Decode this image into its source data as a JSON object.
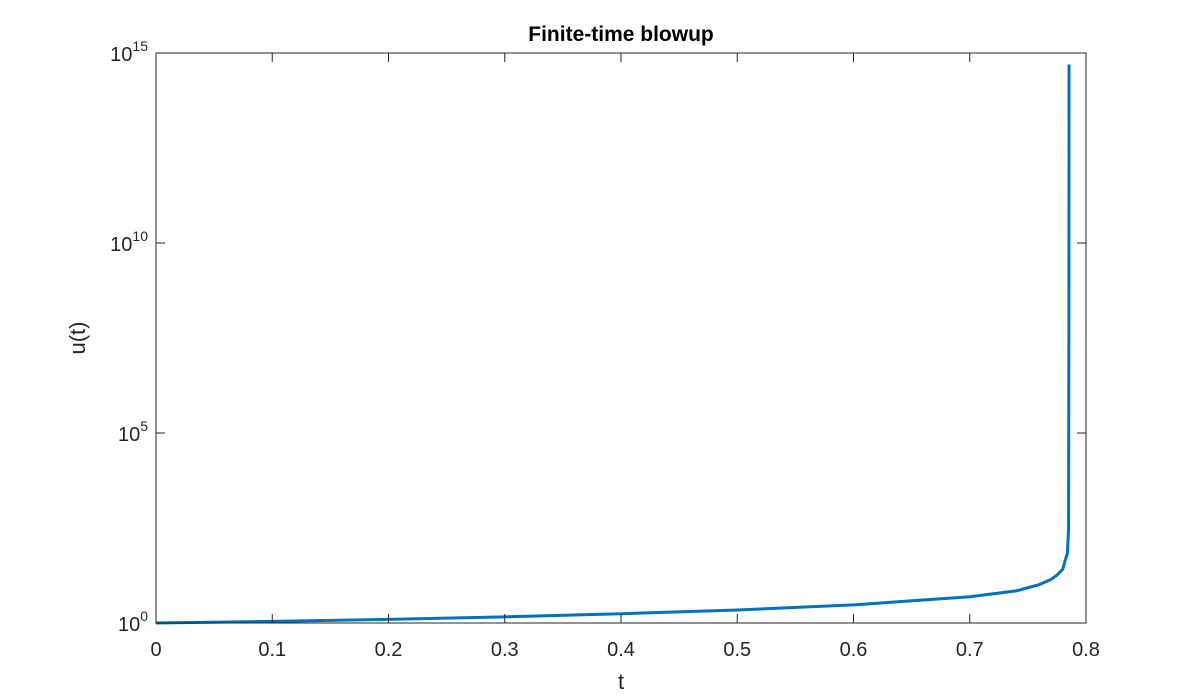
{
  "chart_data": {
    "type": "line",
    "title": "Finite-time blowup",
    "xlabel": "t",
    "ylabel": "u(t)",
    "xlim": [
      0,
      0.8
    ],
    "ylim": [
      1,
      1000000000000000.0
    ],
    "yscale": "log",
    "grid": false,
    "x_ticks": [
      "0",
      "0.1",
      "0.2",
      "0.3",
      "0.4",
      "0.5",
      "0.6",
      "0.7",
      "0.8"
    ],
    "y_ticks": [
      {
        "base": "10",
        "exponent": "0"
      },
      {
        "base": "10",
        "exponent": "5"
      },
      {
        "base": "10",
        "exponent": "10"
      },
      {
        "base": "10",
        "exponent": "15"
      }
    ],
    "series": [
      {
        "color": "#0072BD",
        "x": [
          0,
          0.1,
          0.2,
          0.3,
          0.4,
          0.5,
          0.6,
          0.7,
          0.74,
          0.76,
          0.77,
          0.775,
          0.78,
          0.782,
          0.784,
          0.785,
          0.7853,
          0.78539
        ],
        "y": [
          1,
          1.1,
          1.25,
          1.45,
          1.75,
          2.2,
          3.0,
          4.9,
          7.0,
          10.3,
          14.1,
          18.2,
          26,
          44,
          68,
          300,
          100000000.0,
          500000000000000.0
        ]
      }
    ]
  }
}
